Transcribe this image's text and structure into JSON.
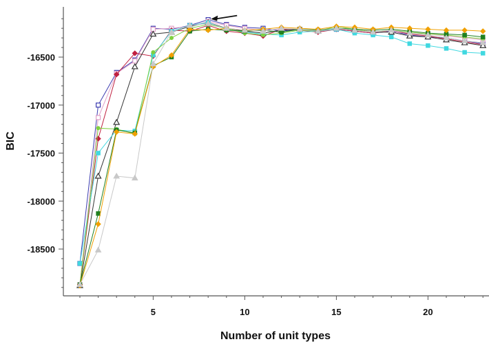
{
  "chart_data": {
    "type": "line",
    "title": "",
    "xlabel": "Number of unit types",
    "ylabel": "BIC",
    "xlim": [
      0,
      23.3
    ],
    "ylim": [
      -19000,
      -16000
    ],
    "xticks": [
      5,
      10,
      15,
      20
    ],
    "yticks": [
      -16500,
      -17000,
      -17500,
      -18000,
      -18500
    ],
    "legend": "none",
    "grid": false,
    "annotations": [
      {
        "type": "arrow",
        "points_to": {
          "x": 8,
          "y": -16110
        }
      }
    ],
    "x": [
      1,
      2,
      3,
      4,
      5,
      6,
      7,
      8,
      9,
      10,
      11,
      12,
      13,
      14,
      15,
      16,
      17,
      18,
      19,
      20,
      21,
      22,
      23
    ],
    "series": [
      {
        "color": "#3b3bb0",
        "marker": "square-open",
        "values": [
          -18650,
          -17000,
          -16660,
          -16530,
          -16200,
          -16210,
          -16170,
          -16110,
          -16160,
          -16190,
          -16200,
          -16230,
          -16210,
          -16230,
          -16210,
          -16230,
          -16250,
          -16230,
          -16270,
          -16290,
          -16300,
          -16330,
          -16360
        ]
      },
      {
        "color": "#e0a0c8",
        "marker": "square-open",
        "values": [
          -18870,
          -17130,
          -16670,
          -16540,
          -16210,
          -16200,
          -16180,
          -16130,
          -16170,
          -16200,
          -16220,
          -16210,
          -16220,
          -16230,
          -16200,
          -16220,
          -16230,
          -16240,
          -16250,
          -16260,
          -16280,
          -16300,
          -16320
        ]
      },
      {
        "color": "#c02040",
        "marker": "diamond",
        "values": [
          -18870,
          -17350,
          -16680,
          -16460,
          -16490,
          -16220,
          -16230,
          -16170,
          -16230,
          -16250,
          -16280,
          -16210,
          -16220,
          -16240,
          -16210,
          -16230,
          -16250,
          -16220,
          -16260,
          -16280,
          -16310,
          -16340,
          -16370
        ]
      },
      {
        "color": "#333333",
        "marker": "triangle-open",
        "values": [
          -18880,
          -17740,
          -17180,
          -16600,
          -16260,
          -16240,
          -16180,
          -16140,
          -16200,
          -16230,
          -16250,
          -16220,
          -16210,
          -16230,
          -16200,
          -16210,
          -16240,
          -16240,
          -16280,
          -16290,
          -16320,
          -16350,
          -16380
        ]
      },
      {
        "color": "#40d8e0",
        "marker": "square-filled",
        "values": [
          -18650,
          -17500,
          -17260,
          -17270,
          -16480,
          -16230,
          -16170,
          -16140,
          -16210,
          -16240,
          -16260,
          -16270,
          -16240,
          -16230,
          -16210,
          -16250,
          -16270,
          -16290,
          -16360,
          -16380,
          -16410,
          -16450,
          -16460
        ]
      },
      {
        "color": "#80d040",
        "marker": "circle",
        "values": [
          -18870,
          -17240,
          -17250,
          -17300,
          -16450,
          -16300,
          -16200,
          -16160,
          -16200,
          -16250,
          -16270,
          -16250,
          -16220,
          -16230,
          -16180,
          -16210,
          -16240,
          -16220,
          -16240,
          -16260,
          -16270,
          -16290,
          -16310
        ]
      },
      {
        "color": "#208020",
        "marker": "square-filled",
        "values": [
          -18870,
          -18130,
          -17260,
          -17290,
          -16590,
          -16500,
          -16230,
          -16210,
          -16220,
          -16230,
          -16220,
          -16240,
          -16210,
          -16220,
          -16200,
          -16210,
          -16220,
          -16210,
          -16230,
          -16250,
          -16260,
          -16270,
          -16290
        ]
      },
      {
        "color": "#f0a000",
        "marker": "diamond",
        "values": [
          -18880,
          -18240,
          -17280,
          -17300,
          -16600,
          -16480,
          -16210,
          -16220,
          -16200,
          -16220,
          -16210,
          -16190,
          -16200,
          -16210,
          -16180,
          -16190,
          -16210,
          -16190,
          -16200,
          -16210,
          -16220,
          -16220,
          -16230
        ]
      },
      {
        "color": "#c8c8c8",
        "marker": "triangle-filled",
        "values": [
          -18870,
          -18510,
          -17740,
          -17760,
          -16570,
          -16240,
          -16170,
          -16150,
          -16200,
          -16220,
          -16230,
          -16200,
          -16210,
          -16230,
          -16200,
          -16220,
          -16240,
          -16220,
          -16250,
          -16270,
          -16300,
          -16330,
          -16350
        ]
      }
    ]
  }
}
